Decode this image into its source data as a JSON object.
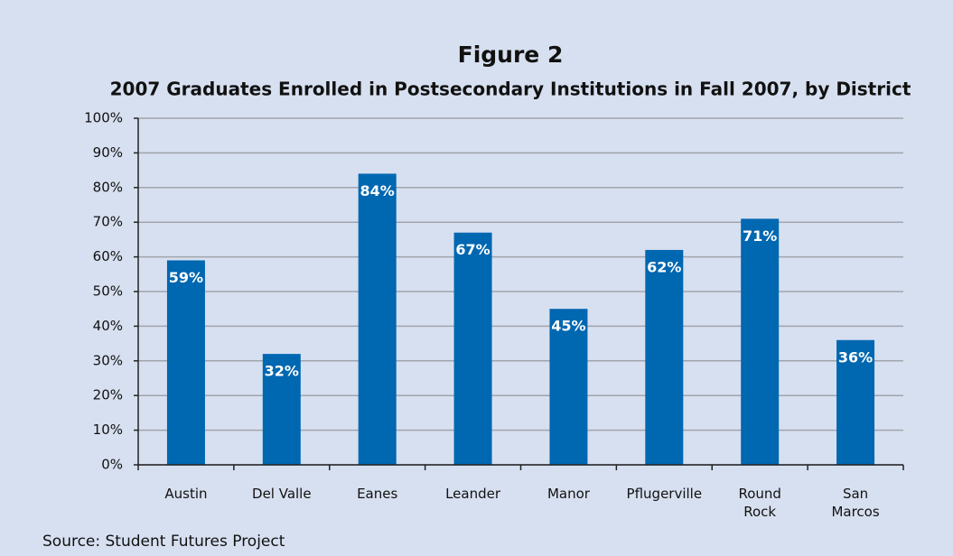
{
  "chart_data": {
    "type": "bar",
    "title": "Figure 2",
    "subtitle": "2007 Graduates Enrolled in Postsecondary Institutions in Fall 2007, by District",
    "categories": [
      "Austin",
      "Del Valle",
      "Eanes",
      "Leander",
      "Manor",
      "Pflugerville",
      "Round\nRock",
      "San\nMarcos"
    ],
    "values": [
      59,
      32,
      84,
      67,
      45,
      62,
      71,
      36
    ],
    "value_labels": [
      "59%",
      "32%",
      "84%",
      "67%",
      "45%",
      "62%",
      "71%",
      "36%"
    ],
    "color": "#0067b1",
    "ylim": [
      0,
      100
    ],
    "yticks": [
      {
        "value": 0,
        "label": "0%"
      },
      {
        "value": 10,
        "label": "10%"
      },
      {
        "value": 20,
        "label": "20%"
      },
      {
        "value": 30,
        "label": "30%"
      },
      {
        "value": 40,
        "label": "40%"
      },
      {
        "value": 50,
        "label": "50%"
      },
      {
        "value": 60,
        "label": "60%"
      },
      {
        "value": 70,
        "label": "70%"
      },
      {
        "value": 80,
        "label": "80%"
      },
      {
        "value": 90,
        "label": "90%"
      },
      {
        "value": 100,
        "label": "100%"
      }
    ],
    "grid": true,
    "source": "Source:  Student Futures Project"
  }
}
